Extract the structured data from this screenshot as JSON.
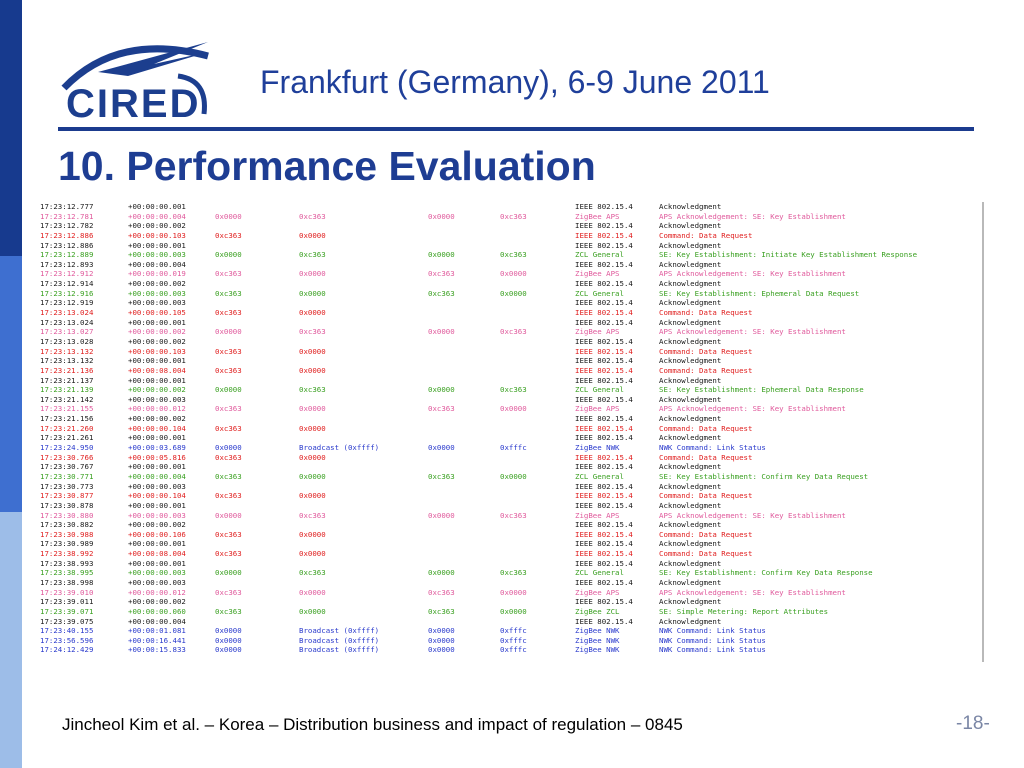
{
  "slide": {
    "logo_text": "CIRED",
    "subtitle": "Frankfurt (Germany), 6-9 June 2011",
    "title": "10. Performance Evaluation",
    "footer": "Jincheol Kim et al. – Korea – Distribution business and impact of regulation – 0845",
    "page": "-18-"
  },
  "colors": {
    "black": "#1a1a1a",
    "pink": "#e05a9c",
    "red": "#e02020",
    "green": "#3aa021",
    "blue": "#2a3acc"
  },
  "log_rows": [
    {
      "time": "17:23:12.777",
      "delta": "+00:00:00.001",
      "src": "",
      "dst": "",
      "src2": "",
      "dst2": "",
      "proto": "IEEE 802.15.4",
      "info": "Acknowledgment",
      "color": "black"
    },
    {
      "time": "17:23:12.781",
      "delta": "+00:00:00.004",
      "src": "0x0000",
      "dst": "0xc363",
      "src2": "0x0000",
      "dst2": "0xc363",
      "proto": "ZigBee APS",
      "info": "APS Acknowledgement: SE: Key Establishment",
      "color": "pink"
    },
    {
      "time": "17:23:12.782",
      "delta": "+00:00:00.002",
      "src": "",
      "dst": "",
      "src2": "",
      "dst2": "",
      "proto": "IEEE 802.15.4",
      "info": "Acknowledgment",
      "color": "black"
    },
    {
      "time": "17:23:12.886",
      "delta": "+00:00:00.103",
      "src": "0xc363",
      "dst": "0x0000",
      "src2": "",
      "dst2": "",
      "proto": "IEEE 802.15.4",
      "info": "Command: Data Request",
      "color": "red"
    },
    {
      "time": "17:23:12.886",
      "delta": "+00:00:00.001",
      "src": "",
      "dst": "",
      "src2": "",
      "dst2": "",
      "proto": "IEEE 802.15.4",
      "info": "Acknowledgment",
      "color": "black"
    },
    {
      "time": "17:23:12.889",
      "delta": "+00:00:00.003",
      "src": "0x0000",
      "dst": "0xc363",
      "src2": "0x0000",
      "dst2": "0xc363",
      "proto": "ZCL General",
      "info": "SE: Key Establishment: Initiate Key Establishment Response",
      "color": "green"
    },
    {
      "time": "17:23:12.893",
      "delta": "+00:00:00.004",
      "src": "",
      "dst": "",
      "src2": "",
      "dst2": "",
      "proto": "IEEE 802.15.4",
      "info": "Acknowledgment",
      "color": "black"
    },
    {
      "time": "17:23:12.912",
      "delta": "+00:00:00.019",
      "src": "0xc363",
      "dst": "0x0000",
      "src2": "0xc363",
      "dst2": "0x0000",
      "proto": "ZigBee APS",
      "info": "APS Acknowledgement: SE: Key Establishment",
      "color": "pink"
    },
    {
      "time": "17:23:12.914",
      "delta": "+00:00:00.002",
      "src": "",
      "dst": "",
      "src2": "",
      "dst2": "",
      "proto": "IEEE 802.15.4",
      "info": "Acknowledgment",
      "color": "black"
    },
    {
      "time": "17:23:12.916",
      "delta": "+00:00:00.003",
      "src": "0xc363",
      "dst": "0x0000",
      "src2": "0xc363",
      "dst2": "0x0000",
      "proto": "ZCL General",
      "info": "SE: Key Establishment: Ephemeral Data Request",
      "color": "green"
    },
    {
      "time": "17:23:12.919",
      "delta": "+00:00:00.003",
      "src": "",
      "dst": "",
      "src2": "",
      "dst2": "",
      "proto": "IEEE 802.15.4",
      "info": "Acknowledgment",
      "color": "black"
    },
    {
      "time": "17:23:13.024",
      "delta": "+00:00:00.105",
      "src": "0xc363",
      "dst": "0x0000",
      "src2": "",
      "dst2": "",
      "proto": "IEEE 802.15.4",
      "info": "Command: Data Request",
      "color": "red"
    },
    {
      "time": "17:23:13.024",
      "delta": "+00:00:00.001",
      "src": "",
      "dst": "",
      "src2": "",
      "dst2": "",
      "proto": "IEEE 802.15.4",
      "info": "Acknowledgment",
      "color": "black"
    },
    {
      "time": "17:23:13.027",
      "delta": "+00:00:00.002",
      "src": "0x0000",
      "dst": "0xc363",
      "src2": "0x0000",
      "dst2": "0xc363",
      "proto": "ZigBee APS",
      "info": "APS Acknowledgement: SE: Key Establishment",
      "color": "pink"
    },
    {
      "time": "17:23:13.028",
      "delta": "+00:00:00.002",
      "src": "",
      "dst": "",
      "src2": "",
      "dst2": "",
      "proto": "IEEE 802.15.4",
      "info": "Acknowledgment",
      "color": "black"
    },
    {
      "time": "17:23:13.132",
      "delta": "+00:00:00.103",
      "src": "0xc363",
      "dst": "0x0000",
      "src2": "",
      "dst2": "",
      "proto": "IEEE 802.15.4",
      "info": "Command: Data Request",
      "color": "red"
    },
    {
      "time": "17:23:13.132",
      "delta": "+00:00:00.001",
      "src": "",
      "dst": "",
      "src2": "",
      "dst2": "",
      "proto": "IEEE 802.15.4",
      "info": "Acknowledgment",
      "color": "black"
    },
    {
      "time": "17:23:21.136",
      "delta": "+00:00:08.004",
      "src": "0xc363",
      "dst": "0x0000",
      "src2": "",
      "dst2": "",
      "proto": "IEEE 802.15.4",
      "info": "Command: Data Request",
      "color": "red"
    },
    {
      "time": "17:23:21.137",
      "delta": "+00:00:00.001",
      "src": "",
      "dst": "",
      "src2": "",
      "dst2": "",
      "proto": "IEEE 802.15.4",
      "info": "Acknowledgment",
      "color": "black"
    },
    {
      "time": "17:23:21.139",
      "delta": "+00:00:00.002",
      "src": "0x0000",
      "dst": "0xc363",
      "src2": "0x0000",
      "dst2": "0xc363",
      "proto": "ZCL General",
      "info": "SE: Key Establishment: Ephemeral Data Response",
      "color": "green"
    },
    {
      "time": "17:23:21.142",
      "delta": "+00:00:00.003",
      "src": "",
      "dst": "",
      "src2": "",
      "dst2": "",
      "proto": "IEEE 802.15.4",
      "info": "Acknowledgment",
      "color": "black"
    },
    {
      "time": "17:23:21.155",
      "delta": "+00:00:00.012",
      "src": "0xc363",
      "dst": "0x0000",
      "src2": "0xc363",
      "dst2": "0x0000",
      "proto": "ZigBee APS",
      "info": "APS Acknowledgement: SE: Key Establishment",
      "color": "pink"
    },
    {
      "time": "17:23:21.156",
      "delta": "+00:00:00.002",
      "src": "",
      "dst": "",
      "src2": "",
      "dst2": "",
      "proto": "IEEE 802.15.4",
      "info": "Acknowledgment",
      "color": "black"
    },
    {
      "time": "17:23:21.260",
      "delta": "+00:00:00.104",
      "src": "0xc363",
      "dst": "0x0000",
      "src2": "",
      "dst2": "",
      "proto": "IEEE 802.15.4",
      "info": "Command: Data Request",
      "color": "red"
    },
    {
      "time": "17:23:21.261",
      "delta": "+00:00:00.001",
      "src": "",
      "dst": "",
      "src2": "",
      "dst2": "",
      "proto": "IEEE 802.15.4",
      "info": "Acknowledgment",
      "color": "black"
    },
    {
      "time": "17:23:24.950",
      "delta": "+00:00:03.689",
      "src": "0x0000",
      "dst": "Broadcast (0xffff)",
      "src2": "0x0000",
      "dst2": "0xfffc",
      "proto": "ZigBee NWK",
      "info": "NWK Command: Link Status",
      "color": "blue"
    },
    {
      "time": "17:23:30.766",
      "delta": "+00:00:05.816",
      "src": "0xc363",
      "dst": "0x0000",
      "src2": "",
      "dst2": "",
      "proto": "IEEE 802.15.4",
      "info": "Command: Data Request",
      "color": "red"
    },
    {
      "time": "17:23:30.767",
      "delta": "+00:00:00.001",
      "src": "",
      "dst": "",
      "src2": "",
      "dst2": "",
      "proto": "IEEE 802.15.4",
      "info": "Acknowledgment",
      "color": "black"
    },
    {
      "time": "17:23:30.771",
      "delta": "+00:00:00.004",
      "src": "0xc363",
      "dst": "0x0000",
      "src2": "0xc363",
      "dst2": "0x0000",
      "proto": "ZCL General",
      "info": "SE: Key Establishment: Confirm Key Data Request",
      "color": "green"
    },
    {
      "time": "17:23:30.773",
      "delta": "+00:00:00.003",
      "src": "",
      "dst": "",
      "src2": "",
      "dst2": "",
      "proto": "IEEE 802.15.4",
      "info": "Acknowledgment",
      "color": "black"
    },
    {
      "time": "17:23:30.877",
      "delta": "+00:00:00.104",
      "src": "0xc363",
      "dst": "0x0000",
      "src2": "",
      "dst2": "",
      "proto": "IEEE 802.15.4",
      "info": "Command: Data Request",
      "color": "red"
    },
    {
      "time": "17:23:30.878",
      "delta": "+00:00:00.001",
      "src": "",
      "dst": "",
      "src2": "",
      "dst2": "",
      "proto": "IEEE 802.15.4",
      "info": "Acknowledgment",
      "color": "black"
    },
    {
      "time": "17:23:30.880",
      "delta": "+00:00:00.003",
      "src": "0x0000",
      "dst": "0xc363",
      "src2": "0x0000",
      "dst2": "0xc363",
      "proto": "ZigBee APS",
      "info": "APS Acknowledgement: SE: Key Establishment",
      "color": "pink"
    },
    {
      "time": "17:23:30.882",
      "delta": "+00:00:00.002",
      "src": "",
      "dst": "",
      "src2": "",
      "dst2": "",
      "proto": "IEEE 802.15.4",
      "info": "Acknowledgment",
      "color": "black"
    },
    {
      "time": "17:23:30.988",
      "delta": "+00:00:00.106",
      "src": "0xc363",
      "dst": "0x0000",
      "src2": "",
      "dst2": "",
      "proto": "IEEE 802.15.4",
      "info": "Command: Data Request",
      "color": "red"
    },
    {
      "time": "17:23:30.989",
      "delta": "+00:00:00.001",
      "src": "",
      "dst": "",
      "src2": "",
      "dst2": "",
      "proto": "IEEE 802.15.4",
      "info": "Acknowledgment",
      "color": "black"
    },
    {
      "time": "17:23:38.992",
      "delta": "+00:00:08.004",
      "src": "0xc363",
      "dst": "0x0000",
      "src2": "",
      "dst2": "",
      "proto": "IEEE 802.15.4",
      "info": "Command: Data Request",
      "color": "red"
    },
    {
      "time": "17:23:38.993",
      "delta": "+00:00:00.001",
      "src": "",
      "dst": "",
      "src2": "",
      "dst2": "",
      "proto": "IEEE 802.15.4",
      "info": "Acknowledgment",
      "color": "black"
    },
    {
      "time": "17:23:38.995",
      "delta": "+00:00:00.003",
      "src": "0x0000",
      "dst": "0xc363",
      "src2": "0x0000",
      "dst2": "0xc363",
      "proto": "ZCL General",
      "info": "SE: Key Establishment: Confirm Key Data Response",
      "color": "green"
    },
    {
      "time": "17:23:38.998",
      "delta": "+00:00:00.003",
      "src": "",
      "dst": "",
      "src2": "",
      "dst2": "",
      "proto": "IEEE 802.15.4",
      "info": "Acknowledgment",
      "color": "black"
    },
    {
      "time": "17:23:39.010",
      "delta": "+00:00:00.012",
      "src": "0xc363",
      "dst": "0x0000",
      "src2": "0xc363",
      "dst2": "0x0000",
      "proto": "ZigBee APS",
      "info": "APS Acknowledgement: SE: Key Establishment",
      "color": "pink"
    },
    {
      "time": "17:23:39.011",
      "delta": "+00:00:00.002",
      "src": "",
      "dst": "",
      "src2": "",
      "dst2": "",
      "proto": "IEEE 802.15.4",
      "info": "Acknowledgment",
      "color": "black"
    },
    {
      "time": "17:23:39.071",
      "delta": "+00:00:00.060",
      "src": "0xc363",
      "dst": "0x0000",
      "src2": "0xc363",
      "dst2": "0x0000",
      "proto": "ZigBee ZCL",
      "info": "SE: Simple Metering: Report Attributes",
      "color": "green"
    },
    {
      "time": "17:23:39.075",
      "delta": "+00:00:00.004",
      "src": "",
      "dst": "",
      "src2": "",
      "dst2": "",
      "proto": "IEEE 802.15.4",
      "info": "Acknowledgment",
      "color": "black"
    },
    {
      "time": "17:23:40.155",
      "delta": "+00:00:01.081",
      "src": "0x0000",
      "dst": "Broadcast (0xffff)",
      "src2": "0x0000",
      "dst2": "0xfffc",
      "proto": "ZigBee NWK",
      "info": "NWK Command: Link Status",
      "color": "blue"
    },
    {
      "time": "17:23:56.596",
      "delta": "+00:00:16.441",
      "src": "0x0000",
      "dst": "Broadcast (0xffff)",
      "src2": "0x0000",
      "dst2": "0xfffc",
      "proto": "ZigBee NWK",
      "info": "NWK Command: Link Status",
      "color": "blue"
    },
    {
      "time": "17:24:12.429",
      "delta": "+00:00:15.833",
      "src": "0x0000",
      "dst": "Broadcast (0xffff)",
      "src2": "0x0000",
      "dst2": "0xfffc",
      "proto": "ZigBee NWK",
      "info": "NWK Command: Link Status",
      "color": "blue"
    }
  ]
}
